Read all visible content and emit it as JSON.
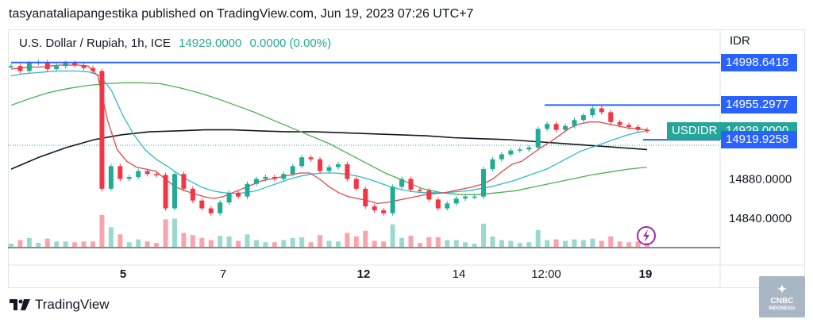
{
  "header": {
    "published": "tasyanataliapangestika published on TradingView.com, Jun 19, 2023 07:26 UTC+7"
  },
  "legend": {
    "symbol": "U.S. Dollar / Rupiah, 1h, ICE",
    "price": "14929.0000",
    "change": "0.0000 (0.00%)"
  },
  "currency": "IDR",
  "colors": {
    "up": "#22ab94",
    "down": "#f23645",
    "ema_fast": "#d84b4b",
    "ema_mid": "#33b8c9",
    "ema_slow": "#4caf50",
    "ema_long": "#131722",
    "hline": "#2962ff",
    "tag_current": "#26a69a"
  },
  "chart_data": {
    "type": "line",
    "title": "U.S. Dollar / Rupiah, 1h, ICE",
    "ylim": [
      14810,
      15030
    ],
    "x_ticks": [
      "5",
      "7",
      "12",
      "14",
      "12:00",
      "19"
    ],
    "y_ticks": [
      "14840.0000",
      "14880.0000"
    ],
    "price_tags": [
      {
        "label": "",
        "value": "14998.6418",
        "y": 14998.6418,
        "type": "line"
      },
      {
        "label": "",
        "value": "14955.2977",
        "y": 14955.2977,
        "type": "line"
      },
      {
        "label": "USDIDR",
        "value": "14929.0000",
        "y": 14929.0,
        "type": "current"
      },
      {
        "label": "",
        "value": "14919.9258",
        "y": 14919.9258,
        "type": "line"
      }
    ],
    "series": [
      {
        "key": "price",
        "values": [
          14995,
          14990,
          14998,
          14999,
          14992,
          14995,
          14998,
          14996,
          14993,
          14990,
          14870,
          14893,
          14880,
          14882,
          14888,
          14885,
          14884,
          14850,
          14885,
          14870,
          14858,
          14850,
          14845,
          14856,
          14866,
          14862,
          14875,
          14880,
          14882,
          14880,
          14885,
          14893,
          14902,
          14900,
          14888,
          14892,
          14895,
          14880,
          14870,
          14852,
          14848,
          14845,
          14872,
          14880,
          14869,
          14868,
          14859,
          14850,
          14855,
          14860,
          14862,
          14862,
          14890,
          14900,
          14905,
          14909,
          14910,
          14912,
          14931,
          14936,
          14930,
          14934,
          14940,
          14945,
          14952,
          14948,
          14938,
          14935,
          14933,
          14930,
          14929
        ]
      },
      {
        "key": "ema_fast",
        "values": [
          14992,
          14993,
          14994,
          14994,
          14995,
          14996,
          14996,
          14996,
          14995,
          14985,
          14940,
          14910,
          14898,
          14892,
          14890,
          14888,
          14880,
          14872,
          14868,
          14865,
          14862,
          14860,
          14862,
          14866,
          14870,
          14874,
          14878,
          14880,
          14882,
          14884,
          14886,
          14886,
          14880,
          14872,
          14866,
          14862,
          14860,
          14858,
          14855,
          14856,
          14858,
          14860,
          14862,
          14864,
          14865,
          14866,
          14868,
          14870,
          14872,
          14875,
          14880,
          14888,
          14895,
          14898,
          14905,
          14912,
          14918,
          14925,
          14932,
          14936,
          14938,
          14938,
          14936,
          14934,
          14932,
          14931,
          14930
        ]
      },
      {
        "key": "ema_mid",
        "values": [
          14985,
          14987,
          14988,
          14989,
          14990,
          14990,
          14990,
          14989,
          14985,
          14970,
          14945,
          14925,
          14910,
          14900,
          14893,
          14885,
          14878,
          14872,
          14868,
          14866,
          14865,
          14866,
          14868,
          14872,
          14876,
          14880,
          14883,
          14885,
          14886,
          14886,
          14885,
          14883,
          14880,
          14876,
          14872,
          14869,
          14867,
          14866,
          14866,
          14866,
          14867,
          14868,
          14870,
          14872,
          14875,
          14878,
          14882,
          14886,
          14890,
          14896,
          14902,
          14908,
          14912,
          14916,
          14920,
          14924,
          14927,
          14929
        ]
      },
      {
        "key": "ema_slow",
        "values": [
          14955,
          14962,
          14968,
          14972,
          14975,
          14977,
          14978,
          14978,
          14977,
          14973,
          14968,
          14962,
          14955,
          14948,
          14940,
          14932,
          14924,
          14916,
          14906,
          14896,
          14886,
          14878,
          14870,
          14866,
          14864,
          14864,
          14866,
          14868,
          14872,
          14876,
          14880,
          14884,
          14887,
          14890,
          14892
        ]
      },
      {
        "key": "ema_long",
        "values": [
          14890,
          14902,
          14912,
          14920,
          14925,
          14928,
          14929,
          14930,
          14930,
          14929,
          14928,
          14928,
          14927,
          14926,
          14925,
          14924,
          14922,
          14921,
          14920,
          14918,
          14916,
          14914,
          14912,
          14910
        ]
      }
    ]
  }
}
